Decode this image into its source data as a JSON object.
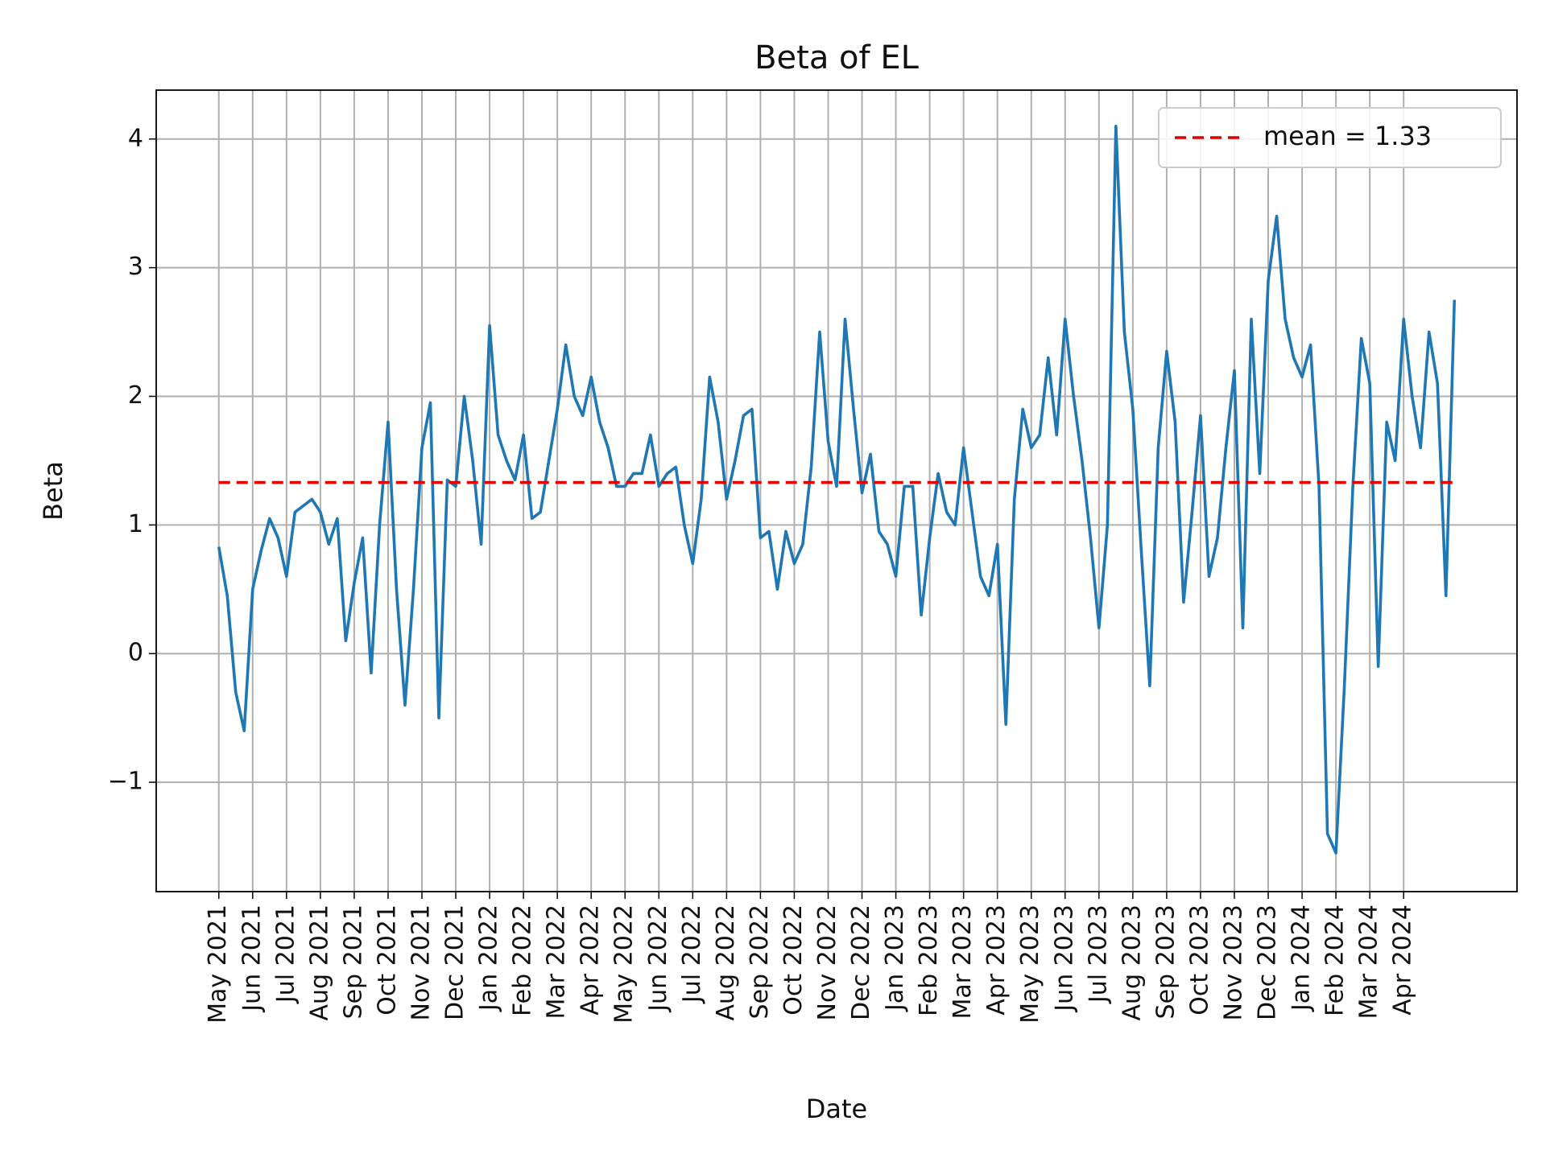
{
  "chart_data": {
    "type": "line",
    "title": "Beta of EL",
    "x_label": "Date",
    "y_label": "Beta",
    "x": [
      "May 2021",
      null,
      null,
      null,
      "Jun 2021",
      null,
      null,
      null,
      "Jul 2021",
      null,
      null,
      null,
      "Aug 2021",
      null,
      null,
      null,
      "Sep 2021",
      null,
      null,
      null,
      "Oct 2021",
      null,
      null,
      null,
      "Nov 2021",
      null,
      null,
      null,
      "Dec 2021",
      null,
      null,
      null,
      "Jan 2022",
      null,
      null,
      null,
      "Feb 2022",
      null,
      null,
      null,
      "Mar 2022",
      null,
      null,
      null,
      "Apr 2022",
      null,
      null,
      null,
      "May 2022",
      null,
      null,
      null,
      "Jun 2022",
      null,
      null,
      null,
      "Jul 2022",
      null,
      null,
      null,
      "Aug 2022",
      null,
      null,
      null,
      "Sep 2022",
      null,
      null,
      null,
      "Oct 2022",
      null,
      null,
      null,
      "Nov 2022",
      null,
      null,
      null,
      "Dec 2022",
      null,
      null,
      null,
      "Jan 2023",
      null,
      null,
      null,
      "Feb 2023",
      null,
      null,
      null,
      "Mar 2023",
      null,
      null,
      null,
      "Apr 2023",
      null,
      null,
      null,
      "May 2023",
      null,
      null,
      null,
      "Jun 2023",
      null,
      null,
      null,
      "Jul 2023",
      null,
      null,
      null,
      "Aug 2023",
      null,
      null,
      null,
      "Sep 2023",
      null,
      null,
      null,
      "Oct 2023",
      null,
      null,
      null,
      "Nov 2023",
      null,
      null,
      null,
      "Dec 2023",
      null,
      null,
      null,
      "Jan 2024",
      null,
      null,
      null,
      "Feb 2024",
      null,
      null,
      null,
      "Mar 2024",
      null,
      null,
      null,
      "Apr 2024",
      null,
      null,
      null,
      null,
      null,
      null
    ],
    "series": [
      {
        "color": "#1f77b4",
        "values": [
          0.83,
          0.45,
          -0.3,
          -0.6,
          0.5,
          0.8,
          1.05,
          0.9,
          0.6,
          1.1,
          1.15,
          1.2,
          1.1,
          0.85,
          1.05,
          0.1,
          0.55,
          0.9,
          -0.15,
          1.0,
          1.8,
          0.5,
          -0.4,
          0.5,
          1.6,
          1.95,
          -0.5,
          1.35,
          1.3,
          2.0,
          1.5,
          0.85,
          2.55,
          1.7,
          1.5,
          1.35,
          1.7,
          1.05,
          1.1,
          1.5,
          1.9,
          2.4,
          2.0,
          1.85,
          2.15,
          1.8,
          1.6,
          1.3,
          1.3,
          1.4,
          1.4,
          1.7,
          1.3,
          1.4,
          1.45,
          1.0,
          0.7,
          1.2,
          2.15,
          1.8,
          1.2,
          1.5,
          1.85,
          1.9,
          0.9,
          0.95,
          0.5,
          0.95,
          0.7,
          0.85,
          1.45,
          2.5,
          1.65,
          1.3,
          2.6,
          1.9,
          1.25,
          1.55,
          0.95,
          0.85,
          0.6,
          1.3,
          1.3,
          0.3,
          0.9,
          1.4,
          1.1,
          1.0,
          1.6,
          1.1,
          0.6,
          0.45,
          0.85,
          -0.55,
          1.2,
          1.9,
          1.6,
          1.7,
          2.3,
          1.7,
          2.6,
          2.0,
          1.5,
          0.9,
          0.2,
          1.0,
          4.1,
          2.5,
          1.9,
          0.8,
          -0.25,
          1.6,
          2.35,
          1.8,
          0.4,
          1.1,
          1.85,
          0.6,
          0.9,
          1.6,
          2.2,
          0.2,
          2.6,
          1.4,
          2.9,
          3.4,
          2.6,
          2.3,
          2.15,
          2.4,
          1.3,
          -1.4,
          -1.55,
          -0.25,
          1.3,
          2.45,
          2.1,
          -0.1,
          1.8,
          1.5,
          2.6,
          2.0,
          1.6,
          2.5,
          2.1,
          0.45,
          2.75
        ]
      }
    ],
    "mean": {
      "value": 1.33,
      "label": "mean = 1.33",
      "color": "#e00000"
    },
    "ylim": [
      -1.85,
      4.38
    ],
    "yticks": [
      {
        "value": -1,
        "label": "−1"
      },
      0,
      1,
      2,
      3,
      4
    ],
    "grid": true,
    "legend": "upper right"
  }
}
